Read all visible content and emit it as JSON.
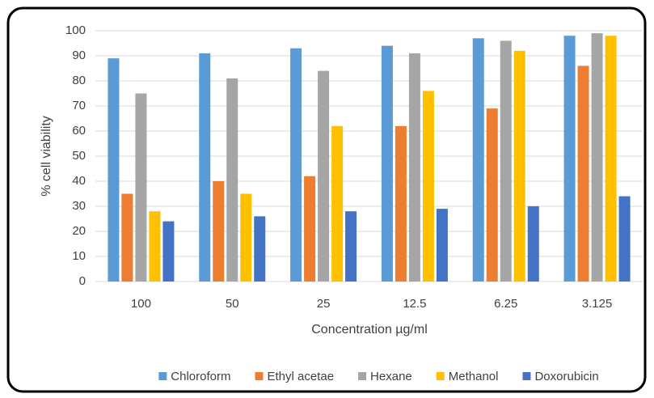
{
  "chart_data": {
    "type": "bar",
    "x_label": "Concentration µg/ml",
    "y_label": "% cell viability",
    "categories": [
      "100",
      "50",
      "25",
      "12.5",
      "6.25",
      "3.125"
    ],
    "series": [
      {
        "name": "Chloroform",
        "color": "#5b9bd5",
        "values": [
          89,
          91,
          93,
          94,
          97,
          98
        ]
      },
      {
        "name": "Ethyl acetae",
        "color": "#ed7d31",
        "values": [
          35,
          40,
          42,
          62,
          69,
          86
        ]
      },
      {
        "name": "Hexane",
        "color": "#a5a5a5",
        "values": [
          75,
          81,
          84,
          91,
          96,
          99
        ]
      },
      {
        "name": "Methanol",
        "color": "#ffc000",
        "values": [
          28,
          35,
          62,
          76,
          92,
          98
        ]
      },
      {
        "name": "Doxorubicin",
        "color": "#4472c4",
        "values": [
          24,
          26,
          28,
          29,
          30,
          34
        ]
      }
    ],
    "ylim": [
      0,
      100
    ],
    "yticks": [
      0,
      10,
      20,
      30,
      40,
      50,
      60,
      70,
      80,
      90,
      100
    ],
    "grid": true,
    "legend": "bottom"
  }
}
